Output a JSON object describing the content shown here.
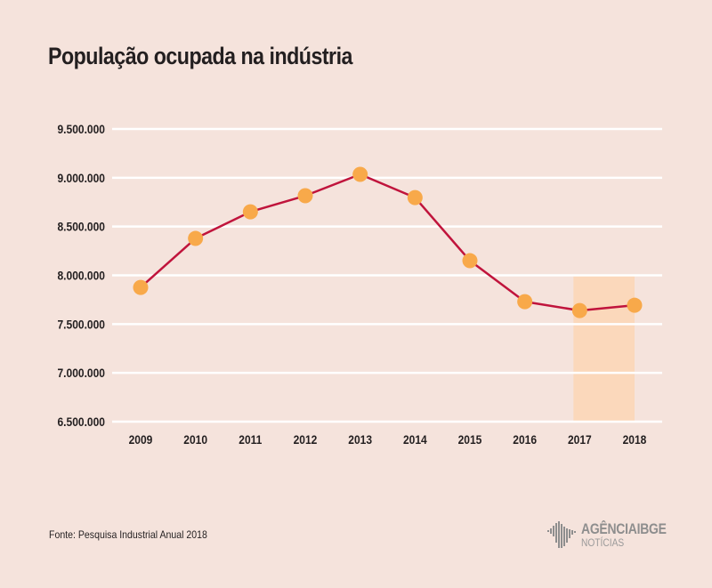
{
  "title": "População ocupada na indústria",
  "source": "Fonte: Pesquisa Industrial Anual 2018",
  "logo": {
    "main": "AGÊNCIA",
    "brand": "IBGE",
    "sub": "NOTÍCIAS",
    "icon": "ibge-logo-icon"
  },
  "colors": {
    "background": "#f5e3dc",
    "line": "#c0143c",
    "marker": "#f8a94a",
    "gridline": "#ffffff",
    "highlight": "#fbd8bb",
    "text": "#231f20"
  },
  "chart_data": {
    "type": "line",
    "title": "População ocupada na indústria",
    "xlabel": "",
    "ylabel": "",
    "categories": [
      "2009",
      "2010",
      "2011",
      "2012",
      "2013",
      "2014",
      "2015",
      "2016",
      "2017",
      "2018"
    ],
    "series": [
      {
        "name": "População ocupada",
        "values": [
          7876000,
          8378000,
          8651000,
          8816000,
          9035000,
          8797000,
          8150000,
          7730000,
          7639000,
          7693000
        ]
      }
    ],
    "ylim": [
      6500000,
      9500000
    ],
    "yticks": [
      6500000,
      7000000,
      7500000,
      8000000,
      8500000,
      9000000,
      9500000
    ],
    "ytick_labels": [
      "6.500.000",
      "7.000.000",
      "7.500.000",
      "8.000.000",
      "8.500.000",
      "9.000.000",
      "9.500.000"
    ],
    "grid": true,
    "legend": "none",
    "highlight": {
      "from_category": "2017",
      "to_category": "2018",
      "y_from": 6500000,
      "y_to": 8000000
    }
  }
}
